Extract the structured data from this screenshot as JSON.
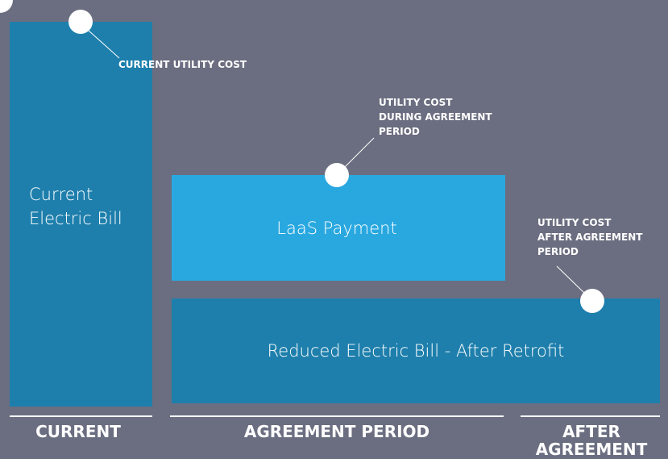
{
  "blocks": [
    {
      "label": [
        "Current",
        "Electric Bill"
      ]
    },
    {
      "label": [
        "LaaS Payment"
      ]
    },
    {
      "label": [
        "Reduced Electric Bill - After Retrofit"
      ]
    }
  ],
  "callouts": [
    {
      "label": [
        "CURRENT UTILITY COST"
      ]
    },
    {
      "label": [
        "UTILITY COST",
        "DURING AGREEMENT",
        "PERIOD"
      ]
    },
    {
      "label": [
        "UTILITY COST",
        "AFTER AGREEMENT",
        "PERIOD"
      ]
    }
  ],
  "periods": [
    {
      "label": [
        "CURRENT"
      ]
    },
    {
      "label": [
        "AGREEMENT PERIOD"
      ]
    },
    {
      "label": [
        "AFTER",
        "AGREEMENT"
      ]
    }
  ]
}
